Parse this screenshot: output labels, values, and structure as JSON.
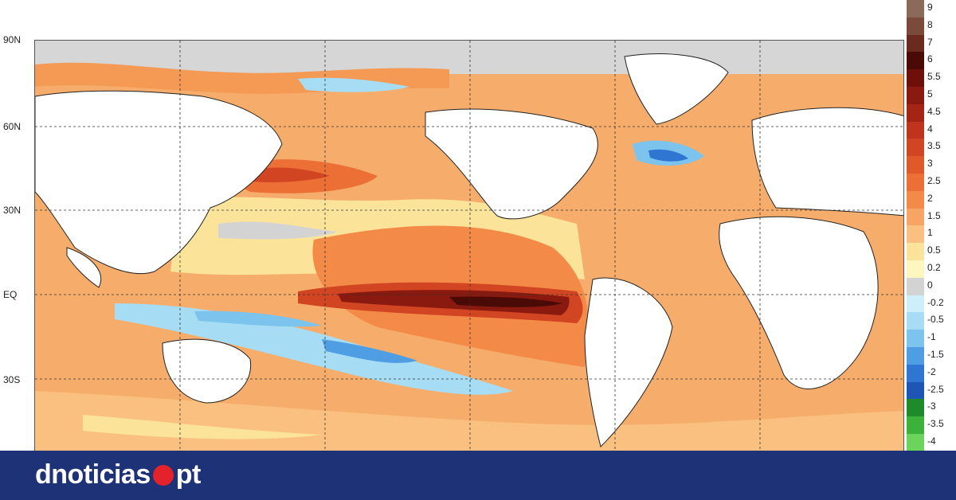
{
  "map": {
    "lat_labels": [
      "90N",
      "60N",
      "30N",
      "EQ",
      "30S"
    ]
  },
  "colorbar": {
    "items": [
      {
        "label": "9",
        "color": "#8c6a5a"
      },
      {
        "label": "8",
        "color": "#7a4a3a"
      },
      {
        "label": "7",
        "color": "#6a2a1e"
      },
      {
        "label": "6",
        "color": "#4a0a06"
      },
      {
        "label": "5.5",
        "color": "#6e0f0a"
      },
      {
        "label": "5",
        "color": "#8a1a10"
      },
      {
        "label": "4.5",
        "color": "#a52514"
      },
      {
        "label": "4",
        "color": "#c0331c"
      },
      {
        "label": "3.5",
        "color": "#d24522"
      },
      {
        "label": "3",
        "color": "#e0592a"
      },
      {
        "label": "2.5",
        "color": "#ec6f35"
      },
      {
        "label": "2",
        "color": "#f38a48"
      },
      {
        "label": "1.5",
        "color": "#f7a563"
      },
      {
        "label": "1",
        "color": "#f9c07f"
      },
      {
        "label": "0.5",
        "color": "#fbe49a"
      },
      {
        "label": "0.2",
        "color": "#fdf6bf"
      },
      {
        "label": "0",
        "color": "#d3d3d3"
      },
      {
        "label": "-0.2",
        "color": "#cceffa"
      },
      {
        "label": "-0.5",
        "color": "#a6ddf4"
      },
      {
        "label": "-1",
        "color": "#7cc3ee"
      },
      {
        "label": "-1.5",
        "color": "#4f9ee4"
      },
      {
        "label": "-2",
        "color": "#2f76d2"
      },
      {
        "label": "-2.5",
        "color": "#1d56b4"
      },
      {
        "label": "-3",
        "color": "#1e8a2a"
      },
      {
        "label": "-3.5",
        "color": "#3bb33a"
      },
      {
        "label": "-4",
        "color": "#6bd45a"
      }
    ]
  },
  "footer": {
    "brand_left": "dnoticias",
    "brand_right": "pt",
    "background": "#1e3377",
    "dot_color": "#e4222b"
  }
}
